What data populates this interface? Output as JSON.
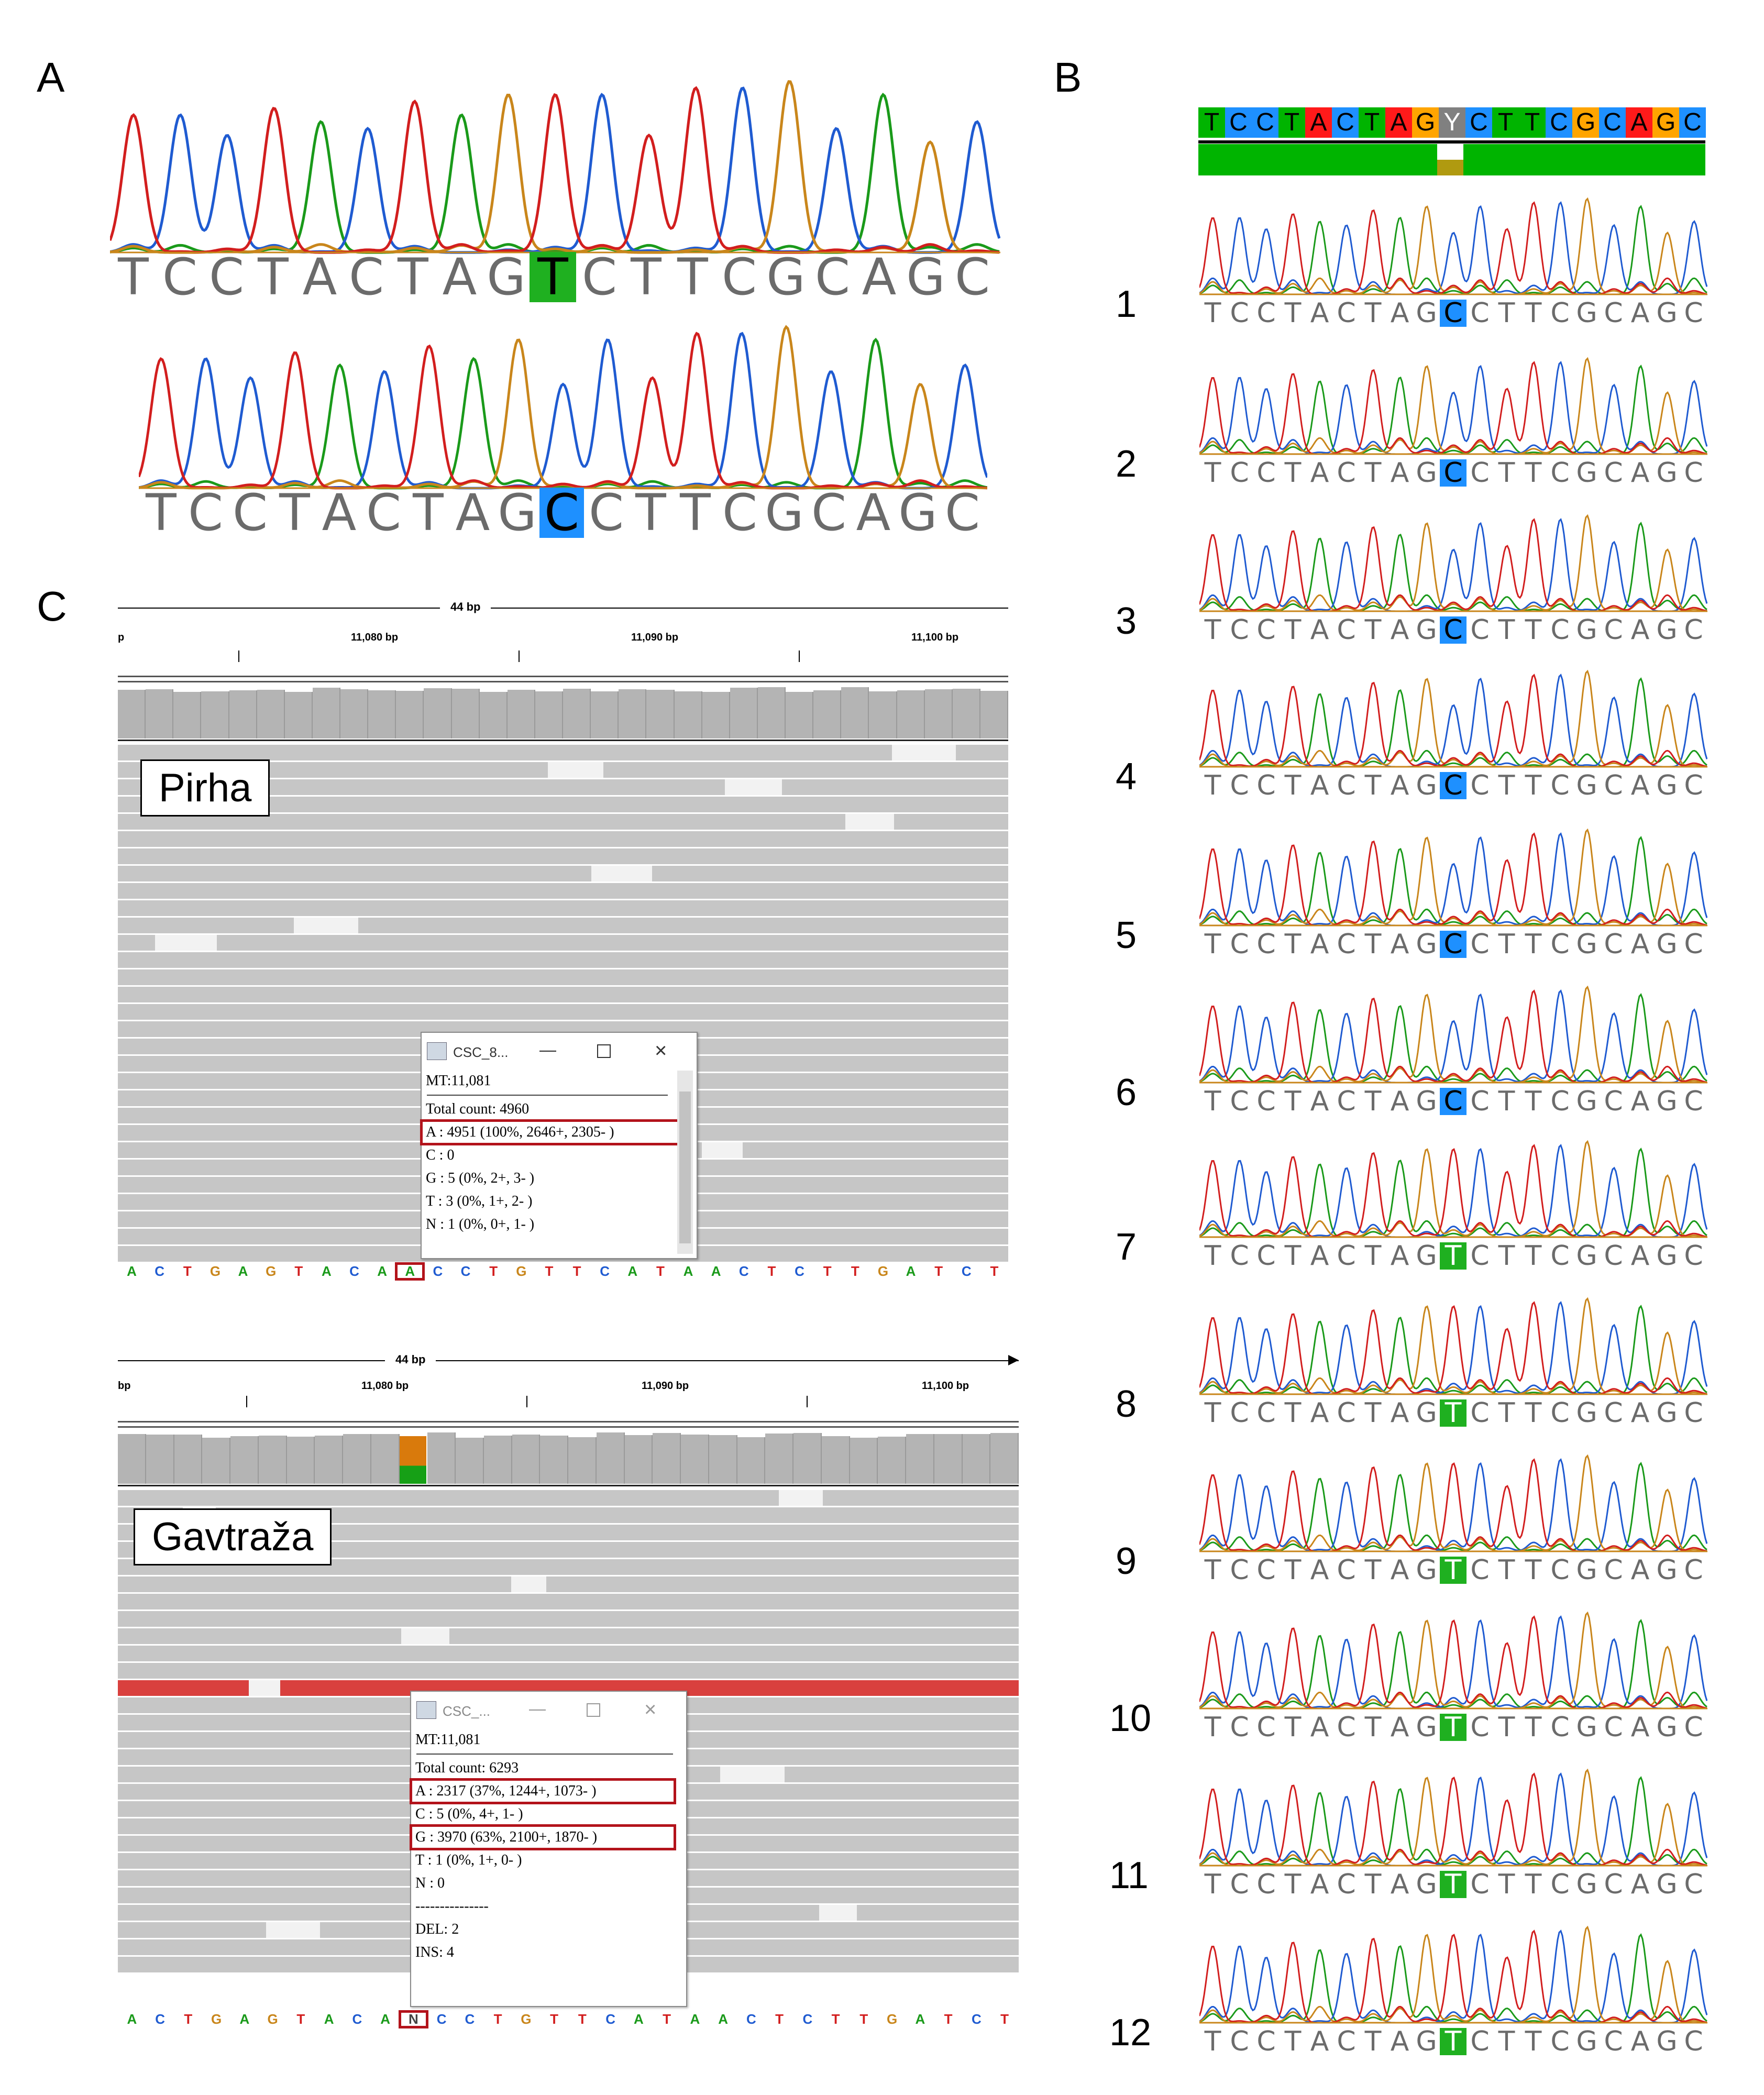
{
  "panels": {
    "a": "A",
    "b": "B",
    "c": "C"
  },
  "panel_a": {
    "top": {
      "sequence": [
        "T",
        "C",
        "C",
        "T",
        "A",
        "C",
        "T",
        "A",
        "G",
        "T",
        "C",
        "T",
        "T",
        "C",
        "G",
        "C",
        "A",
        "G",
        "C"
      ],
      "highlight_index": 9
    },
    "bottom": {
      "sequence": [
        "T",
        "C",
        "C",
        "T",
        "A",
        "C",
        "T",
        "A",
        "G",
        "C",
        "C",
        "T",
        "T",
        "C",
        "G",
        "C",
        "A",
        "G",
        "C"
      ],
      "highlight_index": 9
    }
  },
  "panel_b": {
    "consensus": [
      "T",
      "C",
      "C",
      "T",
      "A",
      "C",
      "T",
      "A",
      "G",
      "Y",
      "C",
      "T",
      "T",
      "C",
      "G",
      "C",
      "A",
      "G",
      "C"
    ],
    "samples": [
      {
        "label": "1",
        "seq": "TCCTACTAGCCTTCGCAGC",
        "variant": "C"
      },
      {
        "label": "2",
        "seq": "TCCTACTAGCCTTCGCAGC",
        "variant": "C"
      },
      {
        "label": "3",
        "seq": "TCCTACTAGCCTTCGCAGC",
        "variant": "C"
      },
      {
        "label": "4",
        "seq": "TCCTACTAGCCTTCGCAGC",
        "variant": "C"
      },
      {
        "label": "5",
        "seq": "TCCTACTAGCCTTCGCAGC",
        "variant": "C"
      },
      {
        "label": "6",
        "seq": "TCCTACTAGCCTTCGCAGC",
        "variant": "C"
      },
      {
        "label": "7",
        "seq": "TCCTACTAGTCTTCGCAGC",
        "variant": "T"
      },
      {
        "label": "8",
        "seq": "TCCTACTAGTCTTCGCAGC",
        "variant": "T"
      },
      {
        "label": "9",
        "seq": "TCCTACTAGTCTTCGCAGC",
        "variant": "T"
      },
      {
        "label": "10",
        "seq": "TCCTACTAGTCTTCGCAGC",
        "variant": "T"
      },
      {
        "label": "11",
        "seq": "TCCTACTAGTCTTCGCAGC",
        "variant": "T"
      },
      {
        "label": "12",
        "seq": "TCCTACTAGTCTTCGCAGC",
        "variant": "T"
      }
    ]
  },
  "panel_c": {
    "pirha": {
      "span": "44 bp",
      "ticks": [
        "p",
        "11,080 bp",
        "11,090 bp",
        "11,100 bp"
      ],
      "sample_name": "Pirha",
      "popup_title": "CSC_8...",
      "popup_lines": [
        "MT:11,081",
        "Total count: 4960",
        "A : 4951 (100%, 2646+, 2305- )",
        "C : 0",
        "G : 5 (0%, 2+, 3- )",
        "T : 3 (0%, 1+, 2- )",
        "N : 1 (0%, 0+, 1- )"
      ],
      "bases": [
        "A",
        "C",
        "T",
        "G",
        "A",
        "G",
        "T",
        "A",
        "C",
        "A",
        "A",
        "C",
        "C",
        "T",
        "G",
        "T",
        "T",
        "C",
        "A",
        "T",
        "A",
        "A",
        "C",
        "T",
        "C",
        "T",
        "T",
        "G",
        "A",
        "T",
        "C",
        "T"
      ]
    },
    "gavtraza": {
      "span": "44 bp",
      "ticks": [
        "bp",
        "11,080 bp",
        "11,090 bp",
        "11,100 bp"
      ],
      "sample_name": "Gavtraža",
      "popup_title": "CSC_...",
      "popup_lines": [
        "MT:11,081",
        "Total count: 6293",
        "A : 2317 (37%, 1244+, 1073- )",
        "C : 5 (0%, 4+, 1- )",
        "G : 3970 (63%, 2100+, 1870- )",
        "T : 1 (0%, 1+, 0- )",
        "N : 0",
        "---------------",
        "DEL: 2",
        "INS: 4"
      ],
      "bases": [
        "A",
        "C",
        "T",
        "G",
        "A",
        "G",
        "T",
        "A",
        "C",
        "A",
        "N",
        "C",
        "C",
        "T",
        "G",
        "T",
        "T",
        "C",
        "A",
        "T",
        "A",
        "A",
        "C",
        "T",
        "C",
        "T",
        "T",
        "G",
        "A",
        "T",
        "C",
        "T"
      ]
    }
  },
  "colors": {
    "A": "#1a9a1a",
    "C": "#1f5bd1",
    "G": "#c9861b",
    "T": "#d21e1e",
    "N": "#444444",
    "highlight_red": "#b3131b"
  }
}
